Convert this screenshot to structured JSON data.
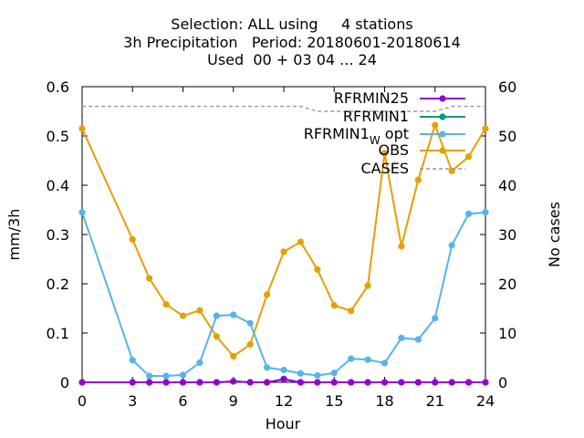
{
  "chart_data": {
    "type": "line",
    "title_lines": [
      "Selection: ALL using     4 stations",
      "3h Precipitation   Period: 20180601-20180614",
      "Used  00 + 03 04 ... 24"
    ],
    "xlabel": "Hour",
    "ylabel": "mm/3h",
    "y2label": "No cases",
    "xlim": [
      0,
      24
    ],
    "ylim": [
      0,
      0.6
    ],
    "y2lim": [
      0,
      60
    ],
    "xticks": [
      "0",
      "3",
      "6",
      "9",
      "12",
      "15",
      "18",
      "21",
      "24"
    ],
    "yticks": [
      "0",
      "0.1",
      "0.2",
      "0.3",
      "0.4",
      "0.5",
      "0.6"
    ],
    "y2ticks": [
      "0",
      "10",
      "20",
      "30",
      "40",
      "50",
      "60"
    ],
    "grid": false,
    "legend_position": "top-right",
    "series": [
      {
        "name": "RFRMIN25",
        "color": "#9400d3",
        "axis": "left",
        "style": "line-points",
        "x": [
          0,
          3,
          4,
          5,
          6,
          7,
          8,
          9,
          10,
          11,
          12,
          13,
          14,
          15,
          16,
          17,
          18,
          19,
          20,
          21,
          22,
          23,
          24
        ],
        "values": [
          0,
          0,
          0,
          0,
          0,
          0,
          0,
          0.002,
          0,
          0,
          0.006,
          0,
          0,
          0,
          0,
          0,
          0,
          0,
          0,
          0,
          0,
          0,
          0
        ]
      },
      {
        "name": "RFRMIN1",
        "color": "#009e73",
        "axis": "left",
        "style": "line-points",
        "x": [
          0,
          3,
          4,
          5,
          6,
          7,
          8,
          9,
          10,
          11,
          12,
          13,
          14,
          15,
          16,
          17,
          18,
          19,
          20,
          21,
          22,
          23,
          24
        ],
        "values": [
          0,
          0,
          0,
          0,
          0,
          0,
          0,
          0.002,
          0,
          0,
          0.007,
          0,
          0,
          0,
          0,
          0,
          0,
          0,
          0,
          0,
          0,
          0,
          0
        ]
      },
      {
        "name": "RFRMIN1",
        "name_subscript": "W",
        "name_suffix": "opt",
        "color": "#56b4e9",
        "axis": "left",
        "style": "line-points",
        "x": [
          0,
          3,
          4,
          5,
          6,
          7,
          8,
          9,
          10,
          11,
          12,
          13,
          14,
          15,
          16,
          17,
          18,
          19,
          20,
          21,
          22,
          23,
          24
        ],
        "values": [
          0.345,
          0.045,
          0.013,
          0.013,
          0.015,
          0.04,
          0.135,
          0.137,
          0.12,
          0.03,
          0.025,
          0.018,
          0.014,
          0.019,
          0.048,
          0.046,
          0.039,
          0.09,
          0.087,
          0.13,
          0.278,
          0.342,
          0.345
        ]
      },
      {
        "name": "OBS",
        "color": "#e69f00",
        "axis": "left",
        "style": "line-points",
        "x": [
          0,
          3,
          4,
          5,
          6,
          7,
          8,
          9,
          10,
          11,
          12,
          13,
          14,
          15,
          16,
          17,
          18,
          19,
          20,
          21,
          22,
          23,
          24
        ],
        "values": [
          0.515,
          0.29,
          0.211,
          0.158,
          0.135,
          0.146,
          0.093,
          0.053,
          0.077,
          0.178,
          0.265,
          0.285,
          0.229,
          0.156,
          0.145,
          0.196,
          0.465,
          0.276,
          0.411,
          0.522,
          0.429,
          0.458,
          0.515
        ]
      },
      {
        "name": "CASES",
        "color": "#999999",
        "axis": "right",
        "style": "dashed",
        "x": [
          0,
          12,
          13,
          14,
          15,
          16,
          17,
          18,
          19,
          20,
          21,
          22,
          23,
          24
        ],
        "values": [
          56,
          56,
          56,
          55,
          55,
          55,
          55,
          55,
          55,
          55,
          55,
          56,
          56,
          56
        ]
      }
    ]
  }
}
